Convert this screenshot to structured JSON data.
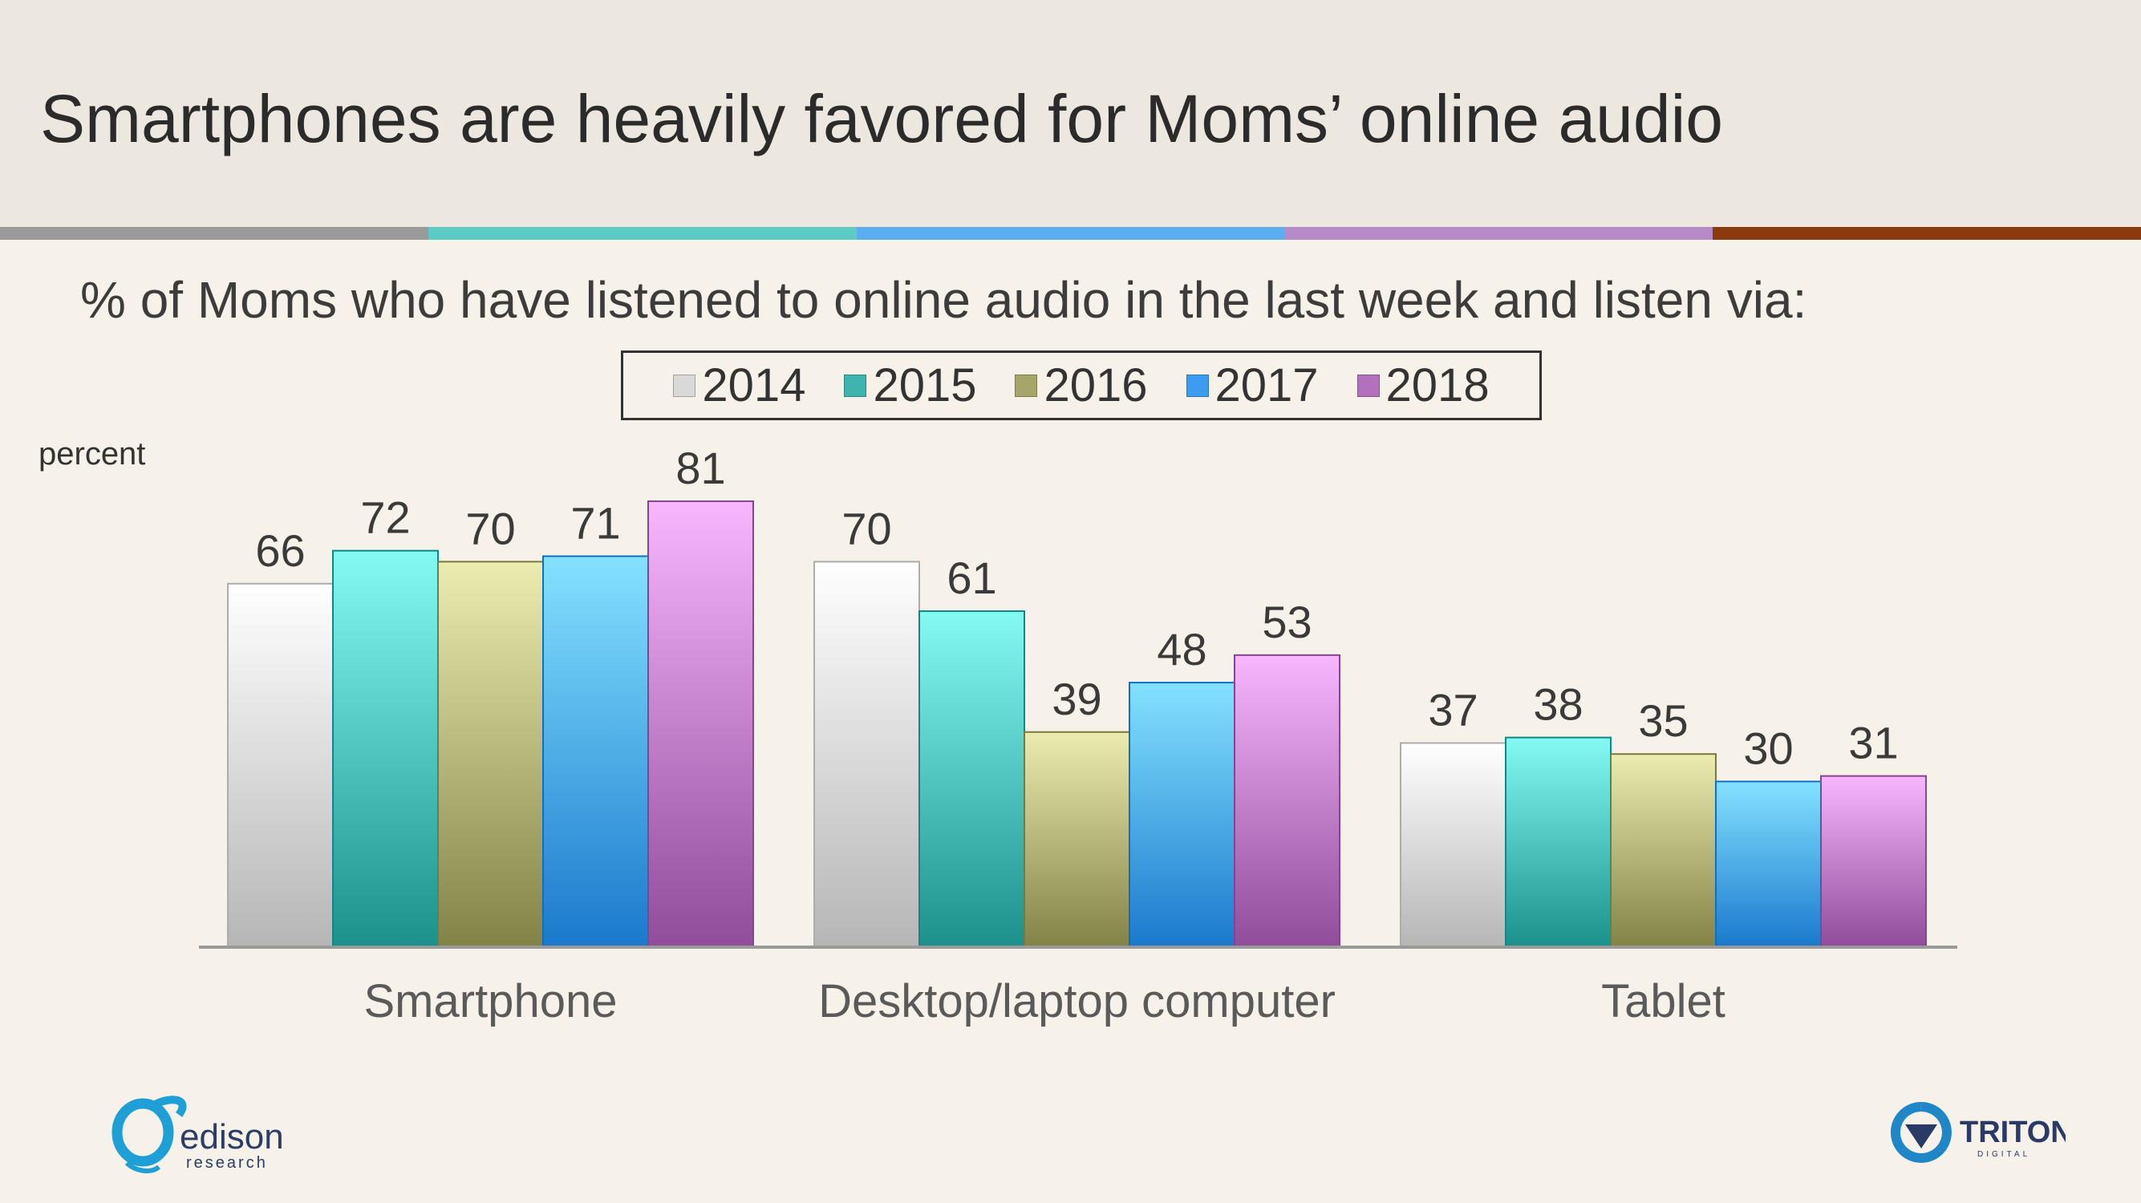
{
  "slide": {
    "title": "Smartphones are heavily favored for Moms’ online audio",
    "stripe_colors": [
      "#9a9a9a",
      "#5ccbc4",
      "#5aaef0",
      "#b58ac7",
      "#8b3a0e"
    ]
  },
  "chart_data": {
    "type": "bar",
    "title": "% of Moms who have listened to online audio in the last week and listen via:",
    "ylabel": "percent",
    "xlabel": "",
    "categories": [
      "Smartphone",
      "Desktop/laptop computer",
      "Tablet"
    ],
    "series": [
      {
        "name": "2014",
        "values": [
          66,
          70,
          37
        ],
        "color": "#d9d9d9"
      },
      {
        "name": "2015",
        "values": [
          72,
          61,
          38
        ],
        "color": "#3fb3ad"
      },
      {
        "name": "2016",
        "values": [
          70,
          39,
          35
        ],
        "color": "#a6a66a"
      },
      {
        "name": "2017",
        "values": [
          71,
          48,
          30
        ],
        "color": "#3e9cf0"
      },
      {
        "name": "2018",
        "values": [
          81,
          53,
          31
        ],
        "color": "#b270bd"
      }
    ],
    "ylim": [
      0,
      81
    ],
    "grid": false,
    "legend": "top",
    "data_labels": true
  },
  "logos": {
    "left": {
      "name": "edison",
      "sub": "research",
      "icon": "edison-logo-icon"
    },
    "right": {
      "name": "TRITON",
      "sub": "DIGITAL",
      "icon": "triton-logo-icon"
    }
  }
}
